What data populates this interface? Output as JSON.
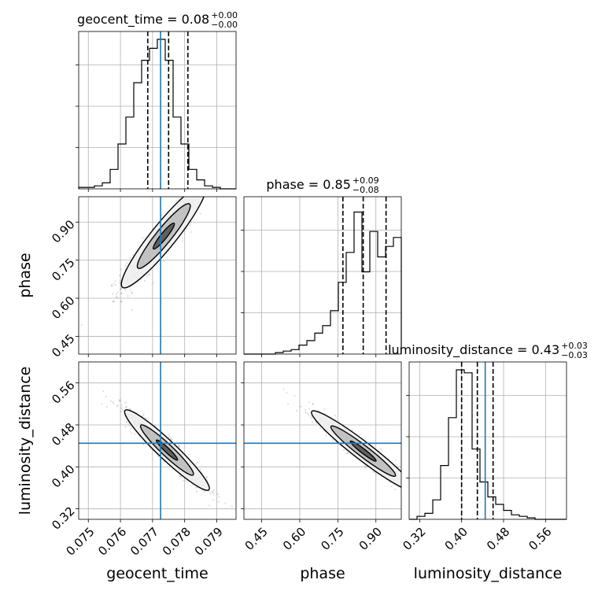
{
  "chart_data": {
    "type": "corner",
    "truth_color": "#1f77b4",
    "hist_color": "#000000",
    "grid": true,
    "parameters": [
      {
        "name": "geocent_time",
        "range": [
          0.0747,
          0.0796
        ],
        "ticks": [
          0.075,
          0.076,
          0.077,
          0.078,
          0.079
        ],
        "tick_labels": [
          "0.075",
          "0.076",
          "0.077",
          "0.078",
          "0.079"
        ],
        "truth": 0.07725,
        "quantiles": [
          0.07685,
          0.0775,
          0.0781
        ],
        "title": {
          "main": "geocent_time = 0.08",
          "sup": "+0.00",
          "sub": "−0.00"
        },
        "hist": [
          0.01,
          0.01,
          0.02,
          0.04,
          0.13,
          0.3,
          0.48,
          0.71,
          0.86,
          0.94,
          1.0,
          0.86,
          0.48,
          0.3,
          0.13,
          0.06,
          0.02,
          0.01,
          0.0,
          0.0
        ]
      },
      {
        "name": "phase",
        "range": [
          0.38,
          1.0
        ],
        "ticks": [
          0.45,
          0.6,
          0.75,
          0.9
        ],
        "tick_labels": [
          "0.45",
          "0.60",
          "0.75",
          "0.90"
        ],
        "truth": null,
        "quantiles": [
          0.77,
          0.85,
          0.94
        ],
        "title": {
          "main": "phase = 0.85",
          "sup": "+0.09",
          "sub": "−0.08"
        },
        "hist": [
          0.0,
          0.0,
          0.0,
          0.0,
          0.01,
          0.02,
          0.03,
          0.06,
          0.09,
          0.14,
          0.19,
          0.29,
          0.48,
          0.68,
          0.95,
          0.55,
          0.82,
          0.65,
          0.72,
          0.78
        ]
      },
      {
        "name": "luminosity_distance",
        "range": [
          0.3,
          0.6
        ],
        "ticks": [
          0.32,
          0.4,
          0.48,
          0.56
        ],
        "tick_labels": [
          "0.32",
          "0.40",
          "0.48",
          "0.56"
        ],
        "truth": 0.445,
        "quantiles": [
          0.4,
          0.43,
          0.46
        ],
        "title": {
          "main": "luminosity_distance = 0.43",
          "sup": "+0.03",
          "sub": "−0.03"
        },
        "hist": [
          0.0,
          0.02,
          0.04,
          0.13,
          0.36,
          0.68,
          1.0,
          0.98,
          0.47,
          0.25,
          0.15,
          0.1,
          0.06,
          0.03,
          0.02,
          0.01,
          0.0,
          0.0,
          0.0,
          0.0
        ]
      }
    ],
    "pairs": [
      {
        "x": 0,
        "y": 1,
        "center": [
          0.07735,
          0.845
        ],
        "sd": [
          0.00055,
          0.085
        ],
        "rho": 0.93
      },
      {
        "x": 0,
        "y": 2,
        "center": [
          0.07745,
          0.432
        ],
        "sd": [
          0.00055,
          0.032
        ],
        "rho": -0.95
      },
      {
        "x": 1,
        "y": 2,
        "center": [
          0.85,
          0.43
        ],
        "sd": [
          0.085,
          0.032
        ],
        "rho": -0.96
      }
    ]
  }
}
